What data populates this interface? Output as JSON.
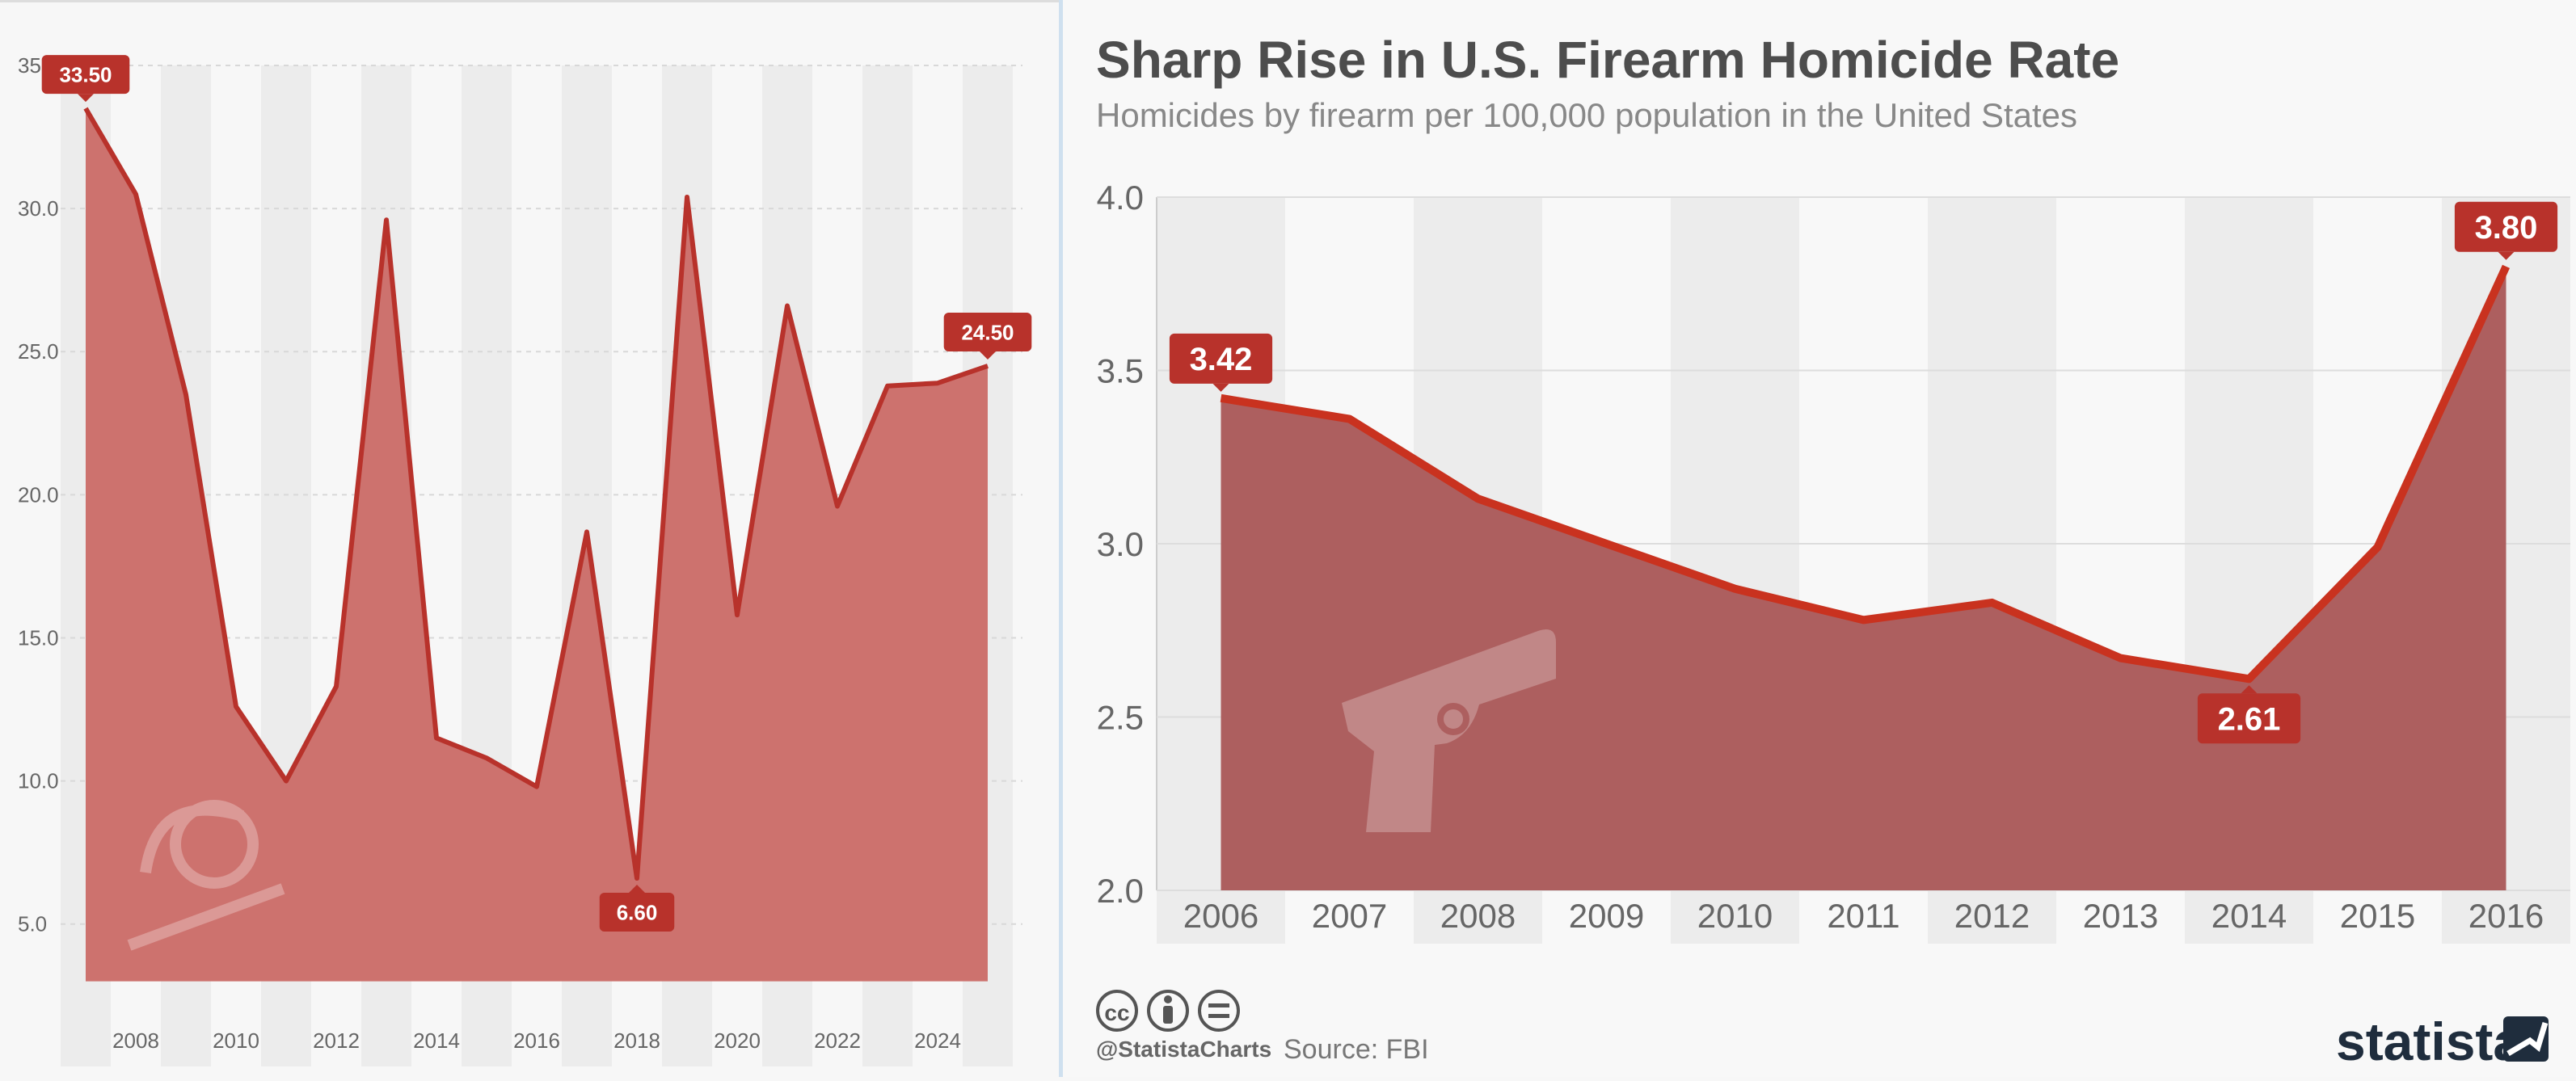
{
  "colors": {
    "accent": "#c0392b",
    "left_line": "#b8322b",
    "left_fill": "#cd726e",
    "right_line": "#c9321f",
    "right_fill": "#ad5f5f",
    "label_bg": "#b8322b",
    "text_gray": "#666666",
    "title_gray": "#4d4d4d",
    "band": "#ececec"
  },
  "left_panel": {
    "watermark_icon": "bomb-icon"
  },
  "right_panel": {
    "title": "Sharp Rise in U.S. Firearm Homicide Rate",
    "subtitle": "Homicides by firearm per 100,000 population in the United States",
    "watermark_icon": "handgun-icon",
    "footer": {
      "license_icons": [
        "cc-icon",
        "attribution-icon",
        "no-derivatives-icon"
      ],
      "handle": "@StatistaCharts",
      "source": "Source: FBI",
      "brand": "statista"
    }
  },
  "chart_data": [
    {
      "type": "area",
      "x": [
        2007,
        2008,
        2009,
        2010,
        2011,
        2012,
        2013,
        2014,
        2015,
        2016,
        2017,
        2018,
        2019,
        2020,
        2021,
        2022,
        2023,
        2024,
        2025
      ],
      "values": [
        33.5,
        30.5,
        23.5,
        12.6,
        10.0,
        13.3,
        29.6,
        11.5,
        10.8,
        9.8,
        18.7,
        6.6,
        30.4,
        15.8,
        26.6,
        19.6,
        23.8,
        23.9,
        24.5
      ],
      "x_ticks": [
        "2008",
        "2010",
        "2012",
        "2014",
        "2016",
        "2018",
        "2020",
        "2022",
        "2024"
      ],
      "y_ticks": [
        "5.0",
        "10.0",
        "15.0",
        "20.0",
        "25.0",
        "30.0",
        "35.0"
      ],
      "ylim": [
        2.0,
        35.0
      ],
      "xlim": [
        2006.5,
        2025.5
      ],
      "data_labels": [
        {
          "index": 0,
          "text": "33.50"
        },
        {
          "index": 11,
          "text": "6.60"
        },
        {
          "index": 18,
          "text": "24.50"
        }
      ],
      "grid": true
    },
    {
      "type": "area",
      "title": "Sharp Rise in U.S. Firearm Homicide Rate",
      "subtitle": "Homicides by firearm per 100,000 population in the United States",
      "categories": [
        "2006",
        "2007",
        "2008",
        "2009",
        "2010",
        "2011",
        "2012",
        "2013",
        "2014",
        "2015",
        "2016"
      ],
      "values": [
        3.42,
        3.36,
        3.13,
        3.0,
        2.87,
        2.78,
        2.83,
        2.67,
        2.61,
        2.99,
        3.8
      ],
      "y_ticks": [
        "2.0",
        "2.5",
        "3.0",
        "3.5",
        "4.0"
      ],
      "ylim": [
        2.0,
        4.0
      ],
      "data_labels": [
        {
          "index": 0,
          "text": "3.42"
        },
        {
          "index": 8,
          "text": "2.61"
        },
        {
          "index": 10,
          "text": "3.80"
        }
      ],
      "grid": true
    }
  ]
}
